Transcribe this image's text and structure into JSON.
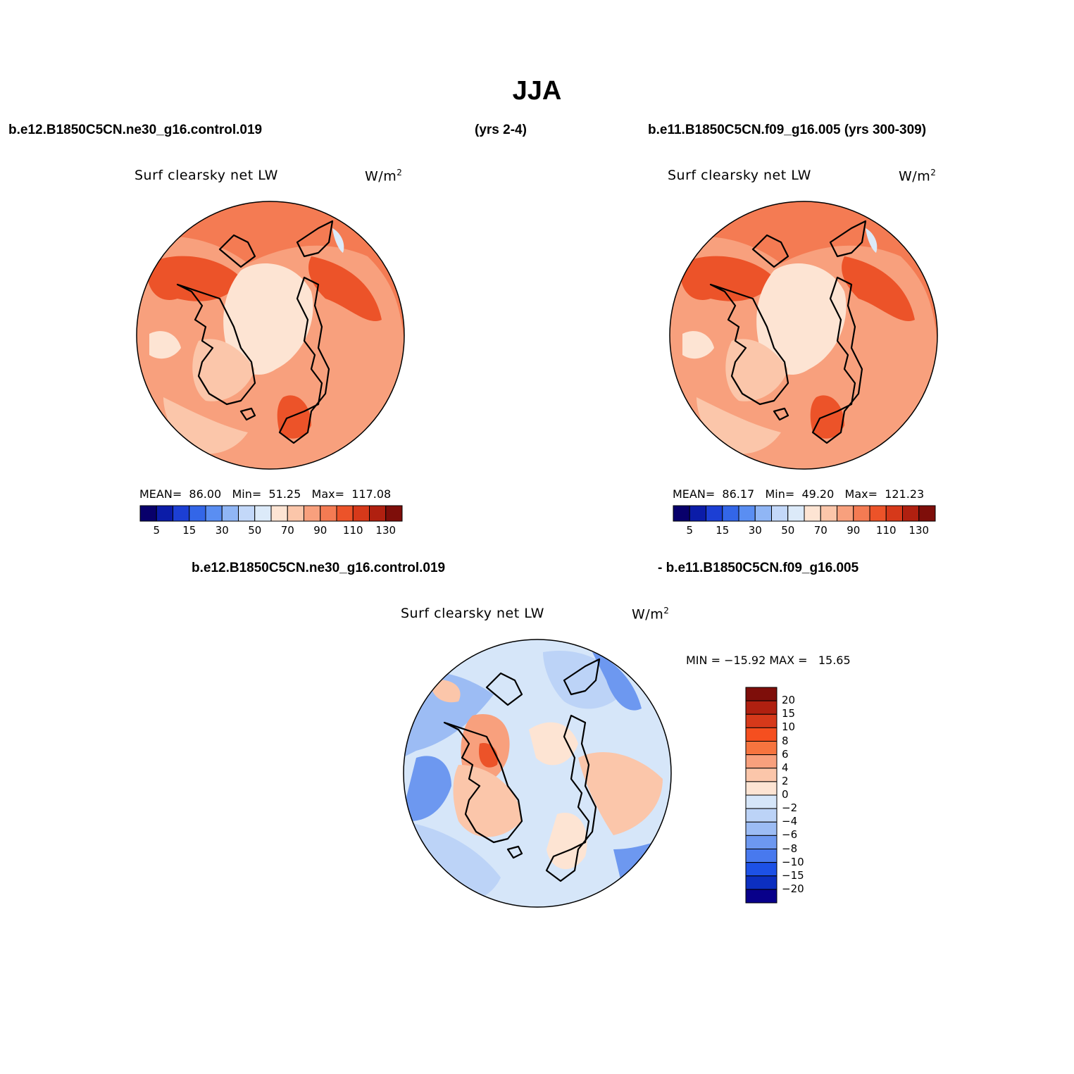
{
  "page_title": "JJA",
  "top_left_case": "b.e12.B1850C5CN.ne30_g16.control.019",
  "top_left_years": "(yrs 2-4)",
  "top_right_case": "b.e11.B1850C5CN.f09_g16.005 (yrs 300-309)",
  "bottom_case_a": "b.e12.B1850C5CN.ne30_g16.control.019",
  "bottom_case_b": "- b.e11.B1850C5CN.f09_g16.005",
  "panels": {
    "left": {
      "variable": "Surf clearsky net LW",
      "units": "W/m",
      "units_exp": "2",
      "stats": {
        "mean_label": "MEAN=",
        "mean": "86.00",
        "min_label": "Min=",
        "min": "51.25",
        "max_label": "Max=",
        "max": "117.08"
      }
    },
    "right": {
      "variable": "Surf clearsky net LW",
      "units": "W/m",
      "units_exp": "2",
      "stats": {
        "mean_label": "MEAN=",
        "mean": "86.17",
        "min_label": "Min=",
        "min": "49.20",
        "max_label": "Max=",
        "max": "121.23"
      }
    },
    "diff": {
      "variable": "Surf clearsky net LW",
      "units": "W/m",
      "units_exp": "2",
      "minmax": "MIN = −15.92 MAX =   15.65"
    }
  },
  "colorbar_abs": {
    "colors": [
      "#08006b",
      "#0b1ca8",
      "#1c3fd4",
      "#3366e8",
      "#5a8ef2",
      "#90b6f5",
      "#c3d8f9",
      "#dceaf9",
      "#fde4d3",
      "#fbc6aa",
      "#f8a07d",
      "#f47b53",
      "#ec5329",
      "#d6391a",
      "#b02010",
      "#7e0e0a"
    ],
    "labels": [
      "5",
      "15",
      "30",
      "50",
      "70",
      "90",
      "110",
      "130"
    ]
  },
  "colorbar_diff": {
    "colors": [
      "#7e0e0a",
      "#b02010",
      "#d6391a",
      "#f54f1f",
      "#f6743f",
      "#f8a07d",
      "#fbc6aa",
      "#fde4d3",
      "#d6e6f9",
      "#bcd3f7",
      "#9cbcf4",
      "#6d98f0",
      "#4879ee",
      "#1d51e6",
      "#0c2fc0",
      "#08008a"
    ],
    "labels": [
      "20",
      "15",
      "10",
      "8",
      "6",
      "4",
      "2",
      "0",
      "−2",
      "−4",
      "−6",
      "−8",
      "−10",
      "−15",
      "−20"
    ]
  }
}
